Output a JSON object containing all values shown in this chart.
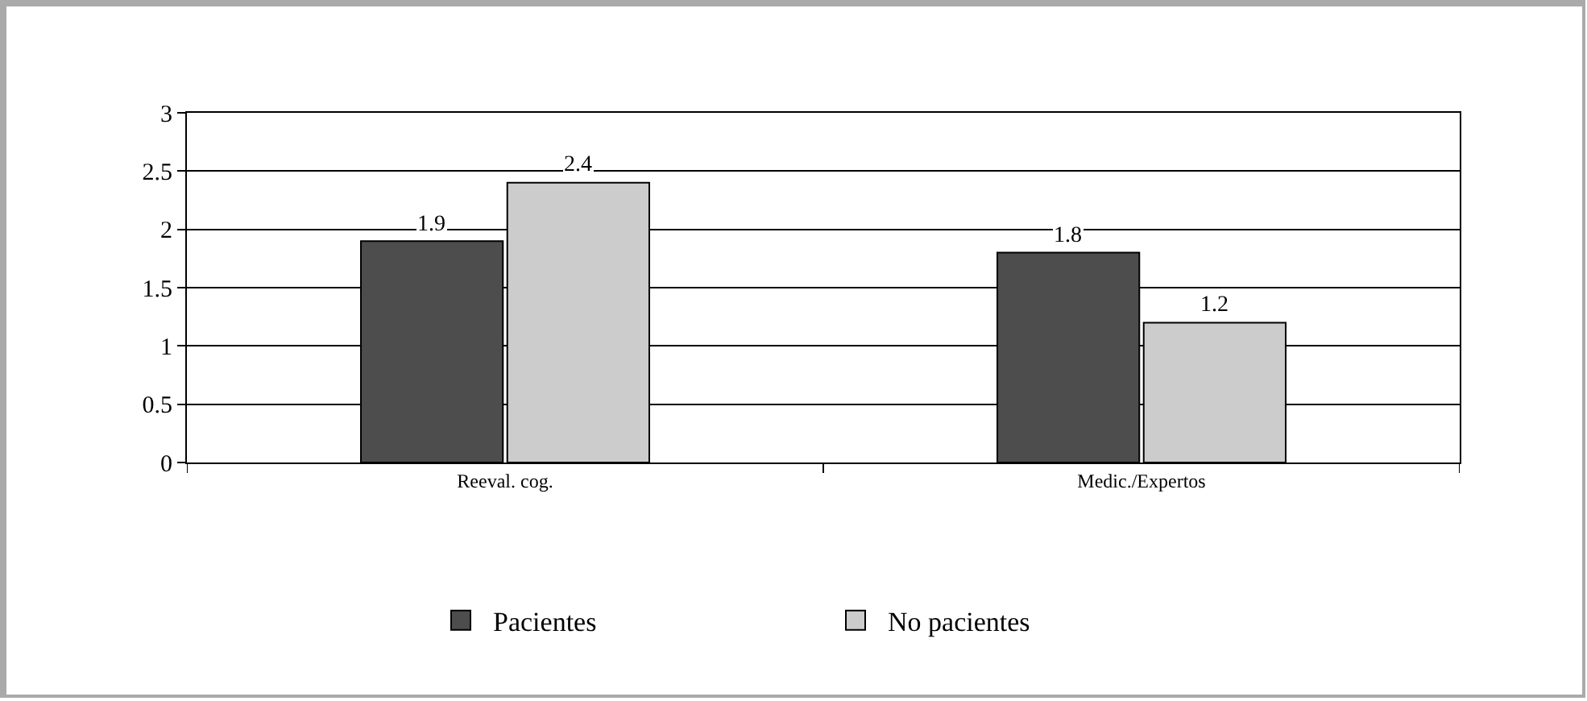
{
  "chart_data": {
    "type": "bar",
    "categories": [
      "Reeval. cog.",
      "Medic./Expertos"
    ],
    "series": [
      {
        "name": "Pacientes",
        "color": "#4d4d4d",
        "values": [
          1.9,
          1.8
        ]
      },
      {
        "name": "No pacientes",
        "color": "#cccccc",
        "values": [
          2.4,
          1.2
        ]
      }
    ],
    "ylim": [
      0,
      3
    ],
    "yticks": [
      0,
      0.5,
      1,
      1.5,
      2,
      2.5,
      3
    ],
    "grid": "y",
    "legend": "bottom",
    "data_labels": true
  }
}
